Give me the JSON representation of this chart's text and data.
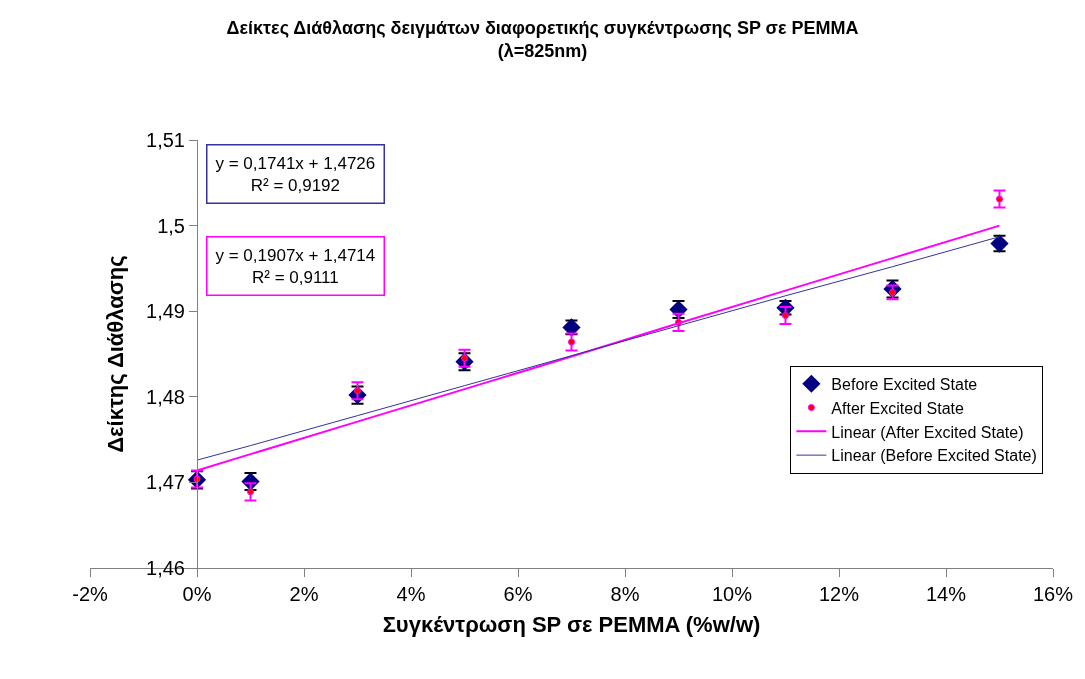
{
  "chart_data": {
    "type": "scatter",
    "title": "Δείκτες Διάθλασης δειγμάτων διαφορετικής συγκέντρωσης SP σε PEMMA (λ=825nm)",
    "xlabel": "Συγκέντρωση SP σε PEMMA (%w/w)",
    "ylabel": "Δείκτης Διάθλασης",
    "x": [
      0,
      1,
      3,
      5,
      7,
      9,
      11,
      13,
      15
    ],
    "series": [
      {
        "name": "Before Excited State",
        "marker": "diamond",
        "color": "#000080",
        "values": [
          1.4703,
          1.4701,
          1.4802,
          1.4841,
          1.4881,
          1.4902,
          1.4904,
          1.4926,
          1.4979
        ],
        "errors": [
          0.001,
          0.001,
          0.001,
          0.001,
          0.0008,
          0.001,
          0.0008,
          0.001,
          0.0009
        ]
      },
      {
        "name": "After Excited State",
        "marker": "circle",
        "color": "#ff0000",
        "values": [
          1.4704,
          1.4689,
          1.4807,
          1.4845,
          1.4864,
          1.4887,
          1.4895,
          1.4922,
          1.5031
        ],
        "errors": [
          0.001,
          0.001,
          0.001,
          0.001,
          0.001,
          0.001,
          0.001,
          0.0008,
          0.001
        ]
      },
      {
        "name": "Linear (After Excited State)",
        "type": "line",
        "marker": "none",
        "color": "#ff00ff",
        "values": [
          1.4714,
          1.4733,
          1.4771,
          1.4809,
          1.4847,
          1.4886,
          1.4924,
          1.4962,
          1.5
        ]
      },
      {
        "name": "Linear (Before Excited State)",
        "type": "line",
        "marker": "none",
        "color": "#333399",
        "values": [
          1.4726,
          1.4743,
          1.4778,
          1.4813,
          1.4848,
          1.4883,
          1.4918,
          1.4952,
          1.4987
        ]
      }
    ],
    "annotations": [
      "y = 0,1741x + 1,4726\nR² = 0,9192",
      "y = 0,1907x + 1,4714\nR² = 0,9111"
    ],
    "xlim": [
      -2,
      16
    ],
    "xticks": [
      {
        "value": -2,
        "label": "-2%"
      },
      {
        "value": 0,
        "label": "0%"
      },
      {
        "value": 2,
        "label": "2%"
      },
      {
        "value": 4,
        "label": "4%"
      },
      {
        "value": 6,
        "label": "6%"
      },
      {
        "value": 8,
        "label": "8%"
      },
      {
        "value": 10,
        "label": "10%"
      },
      {
        "value": 12,
        "label": "12%"
      },
      {
        "value": 14,
        "label": "14%"
      },
      {
        "value": 16,
        "label": "16%"
      }
    ],
    "ylim": [
      1.46,
      1.51
    ],
    "yticks": [
      {
        "value": 1.46,
        "label": "1,46"
      },
      {
        "value": 1.47,
        "label": "1,47"
      },
      {
        "value": 1.48,
        "label": "1,48"
      },
      {
        "value": 1.49,
        "label": "1,49"
      },
      {
        "value": 1.5,
        "label": "1,5"
      },
      {
        "value": 1.51,
        "label": "1,51"
      }
    ],
    "legend": "bottom right"
  }
}
